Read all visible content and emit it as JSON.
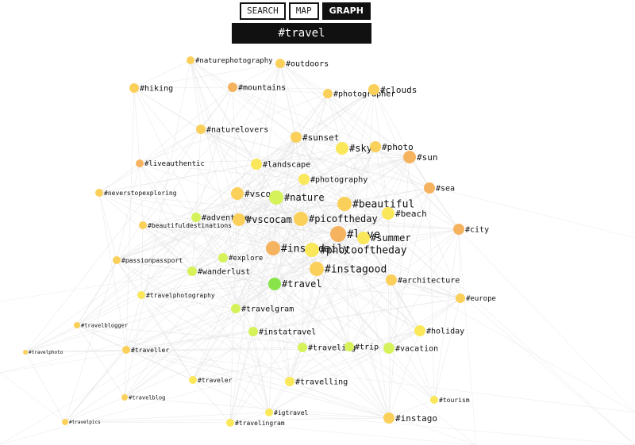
{
  "tabs": [
    {
      "label": "SEARCH",
      "active": false
    },
    {
      "label": "MAP",
      "active": false
    },
    {
      "label": "GRAPH",
      "active": true
    }
  ],
  "query": "#travel",
  "colors": {
    "edge": "#e2e2e2",
    "label": "#111111",
    "green": "#88e44a",
    "lime": "#d6f25a",
    "yellow": "#fbe85a",
    "gold": "#fbd05a",
    "orange": "#f6b35f"
  },
  "nodes": [
    {
      "id": "naturephotography",
      "label": "#naturephotography",
      "color": "gold"
    },
    {
      "id": "outdoors",
      "label": "#outdoors",
      "color": "gold"
    },
    {
      "id": "hiking",
      "label": "#hiking",
      "color": "gold"
    },
    {
      "id": "mountains",
      "label": "#mountains",
      "color": "orange"
    },
    {
      "id": "photographer",
      "label": "#photographer",
      "color": "gold"
    },
    {
      "id": "clouds",
      "label": "#clouds",
      "color": "gold"
    },
    {
      "id": "naturelovers",
      "label": "#naturelovers",
      "color": "gold"
    },
    {
      "id": "sunset",
      "label": "#sunset",
      "color": "gold"
    },
    {
      "id": "sky",
      "label": "#sky",
      "color": "yellow"
    },
    {
      "id": "photo",
      "label": "#photo",
      "color": "gold"
    },
    {
      "id": "sun",
      "label": "#sun",
      "color": "orange"
    },
    {
      "id": "liveauthentic",
      "label": "#liveauthentic",
      "color": "orange"
    },
    {
      "id": "landscape",
      "label": "#landscape",
      "color": "yellow"
    },
    {
      "id": "photography",
      "label": "#photography",
      "color": "yellow"
    },
    {
      "id": "sea",
      "label": "#sea",
      "color": "orange"
    },
    {
      "id": "neverstopexploring",
      "label": "#neverstopexploring",
      "color": "gold"
    },
    {
      "id": "vsco",
      "label": "#vsco",
      "color": "gold"
    },
    {
      "id": "nature",
      "label": "#nature",
      "color": "lime"
    },
    {
      "id": "beautiful",
      "label": "#beautiful",
      "color": "gold"
    },
    {
      "id": "beach",
      "label": "#beach",
      "color": "yellow"
    },
    {
      "id": "adventure",
      "label": "#adventure",
      "color": "lime"
    },
    {
      "id": "vscocam",
      "label": "#vscocam",
      "color": "gold"
    },
    {
      "id": "picoftheday",
      "label": "#picoftheday",
      "color": "gold"
    },
    {
      "id": "beautifuldestinations",
      "label": "#beautifuldestinations",
      "color": "gold"
    },
    {
      "id": "love",
      "label": "#love",
      "color": "orange"
    },
    {
      "id": "summer",
      "label": "#summer",
      "color": "yellow"
    },
    {
      "id": "city",
      "label": "#city",
      "color": "orange"
    },
    {
      "id": "instadaily",
      "label": "#instadaily",
      "color": "orange"
    },
    {
      "id": "photooftheday",
      "label": "#photooftheday",
      "color": "yellow"
    },
    {
      "id": "explore",
      "label": "#explore",
      "color": "lime"
    },
    {
      "id": "passionpassport",
      "label": "#passionpassport",
      "color": "gold"
    },
    {
      "id": "instagood",
      "label": "#instagood",
      "color": "gold"
    },
    {
      "id": "wanderlust",
      "label": "#wanderlust",
      "color": "lime"
    },
    {
      "id": "architecture",
      "label": "#architecture",
      "color": "gold"
    },
    {
      "id": "travel",
      "label": "#travel",
      "color": "green"
    },
    {
      "id": "travelphotography",
      "label": "#travelphotography",
      "color": "yellow"
    },
    {
      "id": "europe",
      "label": "#europe",
      "color": "gold"
    },
    {
      "id": "travelgram",
      "label": "#travelgram",
      "color": "lime"
    },
    {
      "id": "travelblogger",
      "label": "#travelblogger",
      "color": "gold"
    },
    {
      "id": "instatravel",
      "label": "#instatravel",
      "color": "lime"
    },
    {
      "id": "holiday",
      "label": "#holiday",
      "color": "yellow"
    },
    {
      "id": "travelphoto",
      "label": "#travelphoto",
      "color": "gold"
    },
    {
      "id": "traveller",
      "label": "#traveller",
      "color": "gold"
    },
    {
      "id": "traveling",
      "label": "#traveling",
      "color": "lime"
    },
    {
      "id": "trip",
      "label": "#trip",
      "color": "lime"
    },
    {
      "id": "vacation",
      "label": "#vacation",
      "color": "lime"
    },
    {
      "id": "traveler",
      "label": "#traveler",
      "color": "yellow"
    },
    {
      "id": "travelling",
      "label": "#travelling",
      "color": "yellow"
    },
    {
      "id": "travelblog",
      "label": "#travelblog",
      "color": "gold"
    },
    {
      "id": "tourism",
      "label": "#tourism",
      "color": "yellow"
    },
    {
      "id": "igtravel",
      "label": "#igtravel",
      "color": "yellow"
    },
    {
      "id": "instago",
      "label": "#instago",
      "color": "gold"
    },
    {
      "id": "travelpics",
      "label": "#travelpics",
      "color": "gold"
    },
    {
      "id": "travelingram",
      "label": "#travelingram",
      "color": "yellow"
    }
  ]
}
